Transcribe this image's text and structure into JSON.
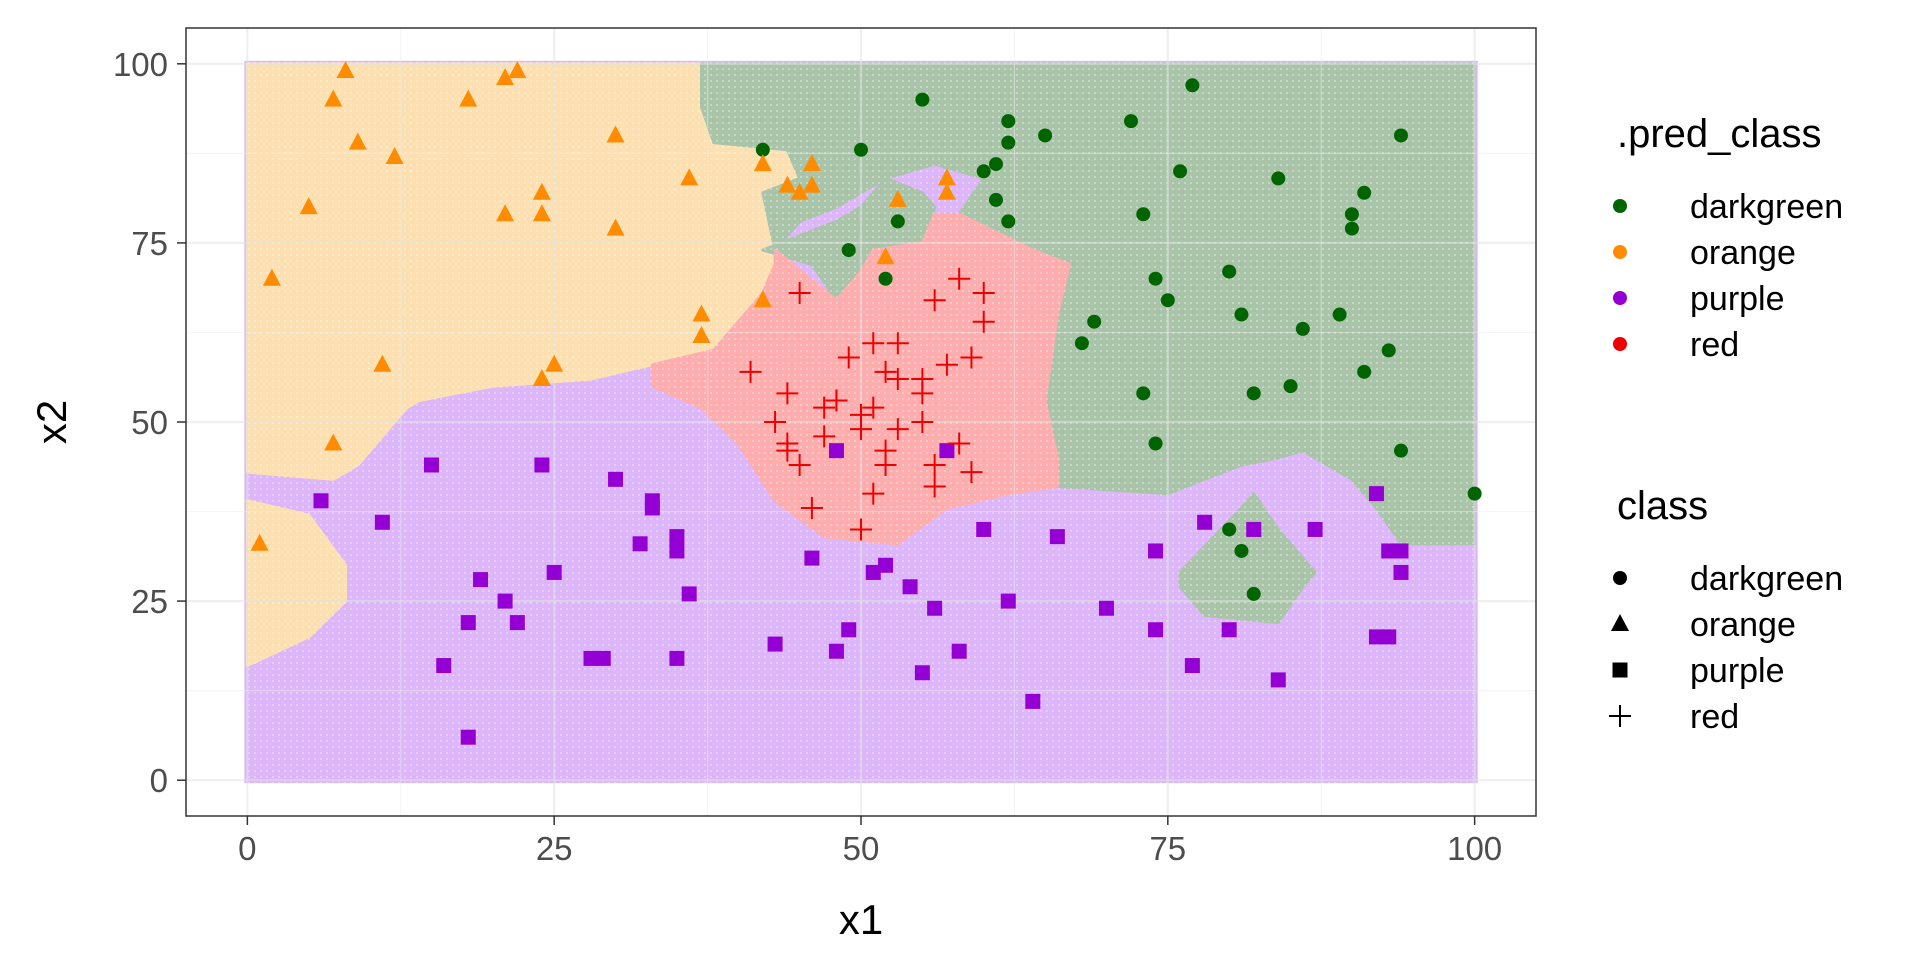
{
  "chart_data": {
    "type": "scatter",
    "xlabel": "x1",
    "ylabel": "x2",
    "xlim": [
      -5,
      105
    ],
    "ylim": [
      -5,
      105
    ],
    "xticks": [
      "0",
      "25",
      "50",
      "75",
      "100"
    ],
    "yticks": [
      "0",
      "25",
      "50",
      "75",
      "100"
    ],
    "grid": true,
    "legend_position": "right",
    "fill_colors": {
      "darkgreen": "#a9c4a9",
      "orange": "#fde0b1",
      "purple": "#dcb6f9",
      "red": "#fdadad"
    },
    "point_colors": {
      "darkgreen": "#006400",
      "orange": "#ff8c00",
      "purple": "#9400d3",
      "red": "#ee0000"
    },
    "legend_fill": {
      "title": ".pred_class",
      "entries": [
        "darkgreen",
        "orange",
        "purple",
        "red"
      ]
    },
    "legend_shape": {
      "title": "class",
      "entries": [
        "darkgreen",
        "orange",
        "purple",
        "red"
      ],
      "shapes": [
        "circle",
        "triangle",
        "square",
        "plus"
      ]
    },
    "series": [
      {
        "name": "darkgreen",
        "shape": "circle",
        "points": [
          [
            42,
            88
          ],
          [
            50,
            88
          ],
          [
            55,
            95
          ],
          [
            62,
            92
          ],
          [
            61,
            86
          ],
          [
            60,
            85
          ],
          [
            62,
            89
          ],
          [
            65,
            90
          ],
          [
            72,
            92
          ],
          [
            77,
            97
          ],
          [
            76,
            85
          ],
          [
            84,
            84
          ],
          [
            94,
            90
          ],
          [
            91,
            82
          ],
          [
            90,
            79
          ],
          [
            90,
            77
          ],
          [
            61,
            81
          ],
          [
            62,
            78
          ],
          [
            53,
            78
          ],
          [
            73,
            79
          ],
          [
            49,
            74
          ],
          [
            52,
            70
          ],
          [
            74,
            70
          ],
          [
            75,
            67
          ],
          [
            80,
            71
          ],
          [
            81,
            65
          ],
          [
            86,
            63
          ],
          [
            89,
            65
          ],
          [
            93,
            60
          ],
          [
            91,
            57
          ],
          [
            85,
            55
          ],
          [
            82,
            54
          ],
          [
            73,
            54
          ],
          [
            68,
            61
          ],
          [
            69,
            64
          ],
          [
            74,
            47
          ],
          [
            94,
            46
          ],
          [
            100,
            40
          ],
          [
            80,
            35
          ],
          [
            81,
            32
          ],
          [
            82,
            26
          ]
        ]
      },
      {
        "name": "orange",
        "shape": "triangle",
        "points": [
          [
            8,
            99
          ],
          [
            7,
            95
          ],
          [
            9,
            89
          ],
          [
            18,
            95
          ],
          [
            21,
            98
          ],
          [
            22,
            99
          ],
          [
            12,
            87
          ],
          [
            5,
            80
          ],
          [
            2,
            70
          ],
          [
            21,
            79
          ],
          [
            24,
            82
          ],
          [
            24,
            79
          ],
          [
            30,
            90
          ],
          [
            30,
            77
          ],
          [
            11,
            58
          ],
          [
            24,
            56
          ],
          [
            25,
            58
          ],
          [
            7,
            47
          ],
          [
            1,
            33
          ],
          [
            36,
            84
          ],
          [
            37,
            65
          ],
          [
            37,
            62
          ],
          [
            42,
            67
          ],
          [
            42,
            86
          ],
          [
            44,
            83
          ],
          [
            45,
            82
          ],
          [
            46,
            86
          ],
          [
            46,
            83
          ],
          [
            53,
            81
          ],
          [
            52,
            73
          ],
          [
            57,
            82
          ],
          [
            57,
            84
          ]
        ]
      },
      {
        "name": "purple",
        "shape": "square",
        "points": [
          [
            6,
            39
          ],
          [
            11,
            36
          ],
          [
            15,
            44
          ],
          [
            24,
            44
          ],
          [
            30,
            42
          ],
          [
            33,
            39
          ],
          [
            33,
            38
          ],
          [
            32,
            33
          ],
          [
            35,
            34
          ],
          [
            35,
            32
          ],
          [
            19,
            28
          ],
          [
            21,
            25
          ],
          [
            22,
            22
          ],
          [
            18,
            22
          ],
          [
            25,
            29
          ],
          [
            36,
            26
          ],
          [
            16,
            16
          ],
          [
            18,
            6
          ],
          [
            28,
            17
          ],
          [
            29,
            17
          ],
          [
            35,
            17
          ],
          [
            43,
            19
          ],
          [
            48,
            18
          ],
          [
            49,
            21
          ],
          [
            46,
            31
          ],
          [
            51,
            29
          ],
          [
            52,
            30
          ],
          [
            54,
            27
          ],
          [
            56,
            24
          ],
          [
            55,
            15
          ],
          [
            58,
            18
          ],
          [
            48,
            46
          ],
          [
            57,
            46
          ],
          [
            60,
            35
          ],
          [
            62,
            25
          ],
          [
            64,
            11
          ],
          [
            66,
            34
          ],
          [
            70,
            24
          ],
          [
            74,
            32
          ],
          [
            74,
            21
          ],
          [
            77,
            16
          ],
          [
            78,
            36
          ],
          [
            80,
            21
          ],
          [
            82,
            35
          ],
          [
            84,
            14
          ],
          [
            87,
            35
          ],
          [
            92,
            40
          ],
          [
            92,
            20
          ],
          [
            93,
            32
          ],
          [
            93,
            20
          ],
          [
            94,
            29
          ],
          [
            94,
            32
          ]
        ]
      },
      {
        "name": "red",
        "shape": "plus",
        "points": [
          [
            41,
            57
          ],
          [
            45,
            68
          ],
          [
            43,
            50
          ],
          [
            44,
            54
          ],
          [
            44,
            47
          ],
          [
            44,
            46
          ],
          [
            45,
            44
          ],
          [
            46,
            38
          ],
          [
            47,
            48
          ],
          [
            47,
            52
          ],
          [
            48,
            53
          ],
          [
            49,
            59
          ],
          [
            48,
            53
          ],
          [
            50,
            51
          ],
          [
            50,
            49
          ],
          [
            51,
            61
          ],
          [
            51,
            52
          ],
          [
            50,
            35
          ],
          [
            51,
            40
          ],
          [
            52,
            57
          ],
          [
            52,
            46
          ],
          [
            52,
            44
          ],
          [
            53,
            49
          ],
          [
            53,
            61
          ],
          [
            53,
            56
          ],
          [
            55,
            56
          ],
          [
            55,
            54
          ],
          [
            55,
            50
          ],
          [
            56,
            44
          ],
          [
            56,
            41
          ],
          [
            56,
            67
          ],
          [
            57,
            58
          ],
          [
            58,
            47
          ],
          [
            58,
            70
          ],
          [
            59,
            43
          ],
          [
            59,
            59
          ],
          [
            60,
            64
          ],
          [
            60,
            68
          ]
        ]
      }
    ],
    "regions": {
      "darkgreen": [
        [
          [
            37,
            100
          ],
          [
            100,
            100
          ],
          [
            100,
            33
          ],
          [
            94,
            33
          ],
          [
            92,
            38
          ],
          [
            90,
            42
          ],
          [
            86,
            46
          ],
          [
            84,
            45
          ],
          [
            81,
            44
          ],
          [
            75,
            40
          ],
          [
            66,
            41
          ],
          [
            66,
            45
          ],
          [
            65,
            53
          ],
          [
            66,
            65
          ],
          [
            67,
            72
          ],
          [
            64,
            74
          ],
          [
            58,
            79
          ],
          [
            60,
            84
          ],
          [
            56,
            86
          ],
          [
            52,
            84
          ],
          [
            48,
            80
          ],
          [
            45,
            78
          ],
          [
            43,
            74
          ],
          [
            42,
            82
          ],
          [
            45,
            84
          ],
          [
            44,
            88
          ],
          [
            38,
            89
          ],
          [
            37,
            94
          ]
        ],
        [
          [
            42,
            74
          ],
          [
            48,
            78
          ],
          [
            50,
            80
          ],
          [
            52,
            84
          ],
          [
            55,
            82
          ],
          [
            56,
            80
          ],
          [
            55,
            75
          ],
          [
            51,
            74
          ],
          [
            50,
            71
          ],
          [
            48,
            67
          ],
          [
            46,
            72
          ]
        ],
        [
          [
            76,
            29
          ],
          [
            81,
            38
          ],
          [
            82,
            40
          ],
          [
            84,
            35
          ],
          [
            87,
            29
          ],
          [
            86,
            27
          ],
          [
            84,
            22
          ],
          [
            78,
            23
          ],
          [
            76,
            27
          ]
        ]
      ],
      "red": [
        [
          [
            43,
            74
          ],
          [
            48,
            67
          ],
          [
            50,
            71
          ],
          [
            51,
            74
          ],
          [
            55,
            75
          ],
          [
            56,
            79
          ],
          [
            58,
            79
          ],
          [
            64,
            74
          ],
          [
            67,
            72
          ],
          [
            66,
            65
          ],
          [
            65,
            53
          ],
          [
            66,
            45
          ],
          [
            66,
            41
          ],
          [
            62,
            40
          ],
          [
            57,
            38
          ],
          [
            53,
            33
          ],
          [
            47,
            34
          ],
          [
            43,
            39
          ],
          [
            40,
            47
          ],
          [
            37,
            52
          ],
          [
            33,
            55
          ],
          [
            33,
            58
          ],
          [
            38,
            60
          ],
          [
            42,
            68
          ],
          [
            43,
            72
          ]
        ]
      ],
      "orange": [
        [
          [
            0,
            100
          ],
          [
            37,
            100
          ],
          [
            37,
            94
          ],
          [
            38,
            89
          ],
          [
            44,
            88
          ],
          [
            45,
            84
          ],
          [
            42,
            82
          ],
          [
            43,
            74
          ],
          [
            43,
            72
          ],
          [
            42,
            68
          ],
          [
            38,
            60
          ],
          [
            33,
            58
          ],
          [
            28,
            56
          ],
          [
            20,
            55
          ],
          [
            14,
            53
          ],
          [
            13,
            52
          ],
          [
            11,
            48
          ],
          [
            9,
            44
          ],
          [
            7,
            42
          ],
          [
            0,
            43
          ]
        ],
        [
          [
            0,
            39
          ],
          [
            5,
            37
          ],
          [
            8,
            30
          ],
          [
            8,
            25
          ],
          [
            5,
            20
          ],
          [
            0,
            16
          ]
        ]
      ],
      "purple": [
        [
          [
            0,
            0
          ],
          [
            100,
            0
          ],
          [
            100,
            33
          ],
          [
            94,
            33
          ],
          [
            92,
            38
          ],
          [
            90,
            42
          ],
          [
            86,
            46
          ],
          [
            84,
            45
          ],
          [
            81,
            44
          ],
          [
            75,
            40
          ],
          [
            66,
            41
          ],
          [
            62,
            40
          ],
          [
            57,
            38
          ],
          [
            53,
            33
          ],
          [
            47,
            34
          ],
          [
            43,
            39
          ],
          [
            40,
            47
          ],
          [
            37,
            52
          ],
          [
            33,
            55
          ],
          [
            28,
            56
          ],
          [
            20,
            55
          ],
          [
            14,
            53
          ],
          [
            13,
            52
          ],
          [
            11,
            48
          ],
          [
            9,
            44
          ],
          [
            7,
            42
          ],
          [
            0,
            43
          ],
          [
            0,
            39
          ],
          [
            5,
            37
          ],
          [
            8,
            30
          ],
          [
            8,
            25
          ],
          [
            5,
            20
          ],
          [
            0,
            16
          ]
        ]
      ]
    }
  }
}
